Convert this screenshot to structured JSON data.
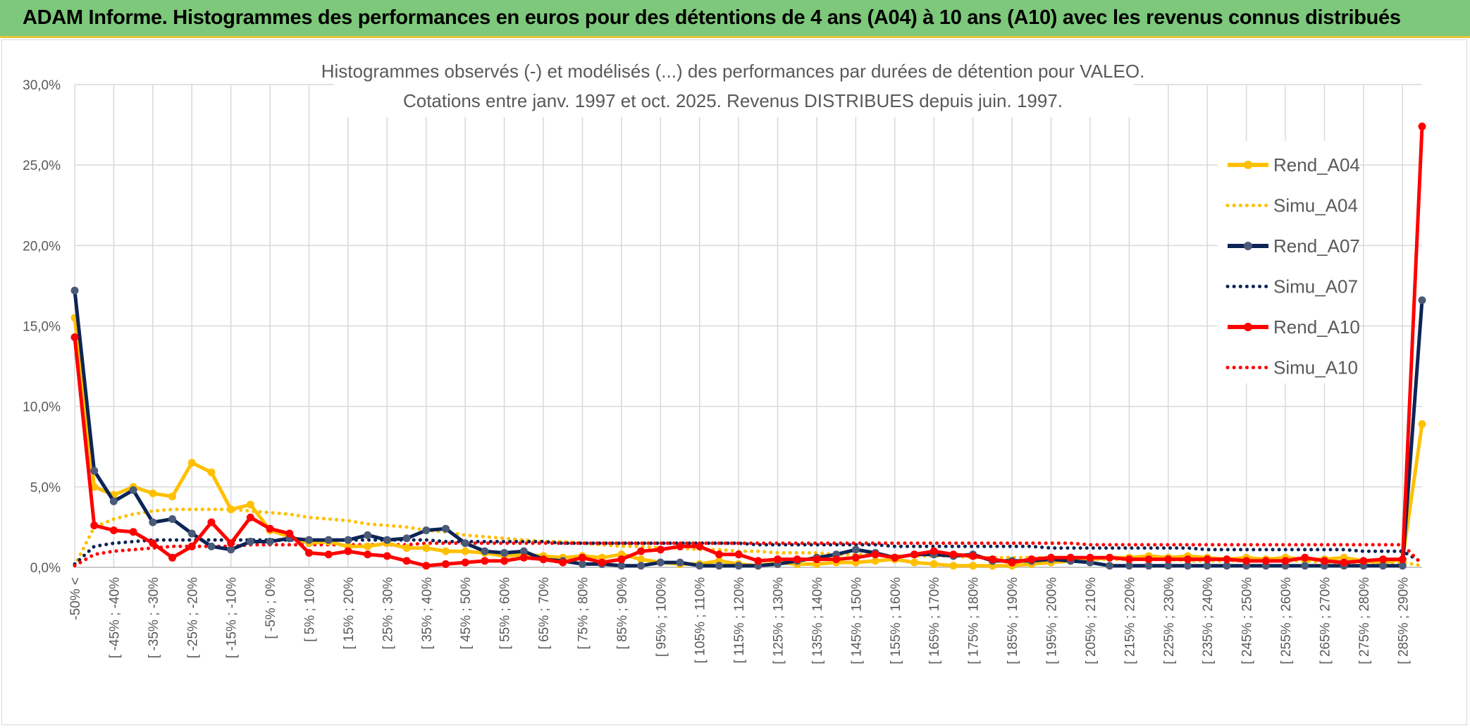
{
  "banner": {
    "title": "ADAM Informe. Histogrammes des performances en euros pour des détentions de 4 ans (A04) à 10 ans (A10) avec les revenus connus distribués"
  },
  "chart_data": {
    "type": "line",
    "title": "Histogrammes observés (-) et modélisés (...) des performances par durées de détention pour VALEO.",
    "subtitle": "Cotations entre janv. 1997 et oct. 2025. Revenus DISTRIBUES depuis juin. 1997.",
    "xlabel": "",
    "ylabel": "",
    "ylim": [
      0,
      30
    ],
    "y_ticks": [
      "0,0%",
      "5,0%",
      "10,0%",
      "15,0%",
      "20,0%",
      "25,0%",
      "30,0%"
    ],
    "grid": true,
    "legend_position": "right",
    "x_tick_labels": [
      "-50% <",
      "[ -45% ; -40%",
      "[ -35% ; -30%",
      "[ -25% ; -20%",
      "[ -15% ; -10%",
      "[ -5% ; 0%",
      "[ 5% ; 10%",
      "[ 15% ; 20%",
      "[ 25% ; 30%",
      "[ 35% ; 40%",
      "[ 45% ; 50%",
      "[ 55% ; 60%",
      "[ 65% ; 70%",
      "[ 75% ; 80%",
      "[ 85% ; 90%",
      "[ 95% ; 100%",
      "[ 105% ; 110%",
      "[ 115% ; 120%",
      "[ 125% ; 130%",
      "[ 135% ; 140%",
      "[ 145% ; 150%",
      "[ 155% ; 160%",
      "[ 165% ; 170%",
      "[ 175% ; 180%",
      "[ 185% ; 190%",
      "[ 195% ; 200%",
      "[ 205% ; 210%",
      "[ 215% ; 220%",
      "[ 225% ; 230%",
      "[ 235% ; 240%",
      "[ 245% ; 250%",
      "[ 255% ; 260%",
      "[ 265% ; 270%",
      "[ 275% ; 280%",
      "[ 285% ; 290%"
    ],
    "series": [
      {
        "name": "Rend_A04",
        "style": "solid",
        "color": "#ffc000",
        "markers": true,
        "values": [
          15.5,
          5.0,
          4.5,
          5.0,
          4.6,
          4.4,
          6.5,
          5.9,
          3.6,
          3.9,
          2.3,
          1.9,
          1.5,
          1.6,
          1.3,
          1.3,
          1.5,
          1.2,
          1.2,
          1.0,
          1.0,
          0.9,
          0.7,
          0.8,
          0.7,
          0.6,
          0.7,
          0.6,
          0.8,
          0.5,
          0.3,
          0.2,
          0.2,
          0.4,
          0.2,
          0.1,
          0.3,
          0.2,
          0.2,
          0.3,
          0.3,
          0.4,
          0.5,
          0.3,
          0.2,
          0.1,
          0.1,
          0.1,
          0.1,
          0.2,
          0.3,
          0.4,
          0.5,
          0.6,
          0.6,
          0.7,
          0.6,
          0.7,
          0.6,
          0.5,
          0.6,
          0.5,
          0.6,
          0.5,
          0.5,
          0.6,
          0.4,
          0.3,
          0.5,
          8.9
        ]
      },
      {
        "name": "Simu_A04",
        "style": "dotted",
        "color": "#ffc000",
        "markers": false,
        "values": [
          0.1,
          2.5,
          3.0,
          3.3,
          3.5,
          3.6,
          3.6,
          3.6,
          3.6,
          3.5,
          3.4,
          3.3,
          3.1,
          3.0,
          2.9,
          2.7,
          2.6,
          2.5,
          2.3,
          2.2,
          2.0,
          1.9,
          1.8,
          1.7,
          1.6,
          1.6,
          1.5,
          1.4,
          1.3,
          1.3,
          1.2,
          1.2,
          1.1,
          1.1,
          1.0,
          1.0,
          0.9,
          0.9,
          0.9,
          0.8,
          0.8,
          0.8,
          0.7,
          0.7,
          0.7,
          0.7,
          0.6,
          0.6,
          0.6,
          0.6,
          0.6,
          0.5,
          0.5,
          0.5,
          0.5,
          0.5,
          0.5,
          0.4,
          0.4,
          0.4,
          0.4,
          0.4,
          0.4,
          0.4,
          0.3,
          0.3,
          0.3,
          0.3,
          0.3,
          0.1
        ]
      },
      {
        "name": "Rend_A07",
        "style": "solid",
        "color": "#0d2456",
        "markers": true,
        "values": [
          17.2,
          6.0,
          4.1,
          4.8,
          2.8,
          3.0,
          2.1,
          1.3,
          1.1,
          1.6,
          1.6,
          1.8,
          1.7,
          1.7,
          1.7,
          2.0,
          1.7,
          1.8,
          2.3,
          2.4,
          1.5,
          1.0,
          0.9,
          1.0,
          0.5,
          0.4,
          0.2,
          0.2,
          0.1,
          0.1,
          0.3,
          0.3,
          0.1,
          0.1,
          0.1,
          0.1,
          0.2,
          0.4,
          0.6,
          0.8,
          1.1,
          0.9,
          0.6,
          0.8,
          0.8,
          0.7,
          0.8,
          0.4,
          0.4,
          0.4,
          0.5,
          0.4,
          0.3,
          0.1,
          0.1,
          0.1,
          0.1,
          0.1,
          0.1,
          0.1,
          0.1,
          0.1,
          0.1,
          0.1,
          0.1,
          0.1,
          0.1,
          0.1,
          0.1,
          16.6
        ]
      },
      {
        "name": "Simu_A07",
        "style": "dotted",
        "color": "#0d2456",
        "markers": false,
        "values": [
          0.2,
          1.3,
          1.5,
          1.6,
          1.7,
          1.7,
          1.7,
          1.7,
          1.7,
          1.7,
          1.7,
          1.7,
          1.7,
          1.7,
          1.7,
          1.7,
          1.7,
          1.7,
          1.7,
          1.6,
          1.6,
          1.6,
          1.6,
          1.6,
          1.6,
          1.5,
          1.5,
          1.5,
          1.5,
          1.5,
          1.5,
          1.5,
          1.5,
          1.5,
          1.5,
          1.4,
          1.4,
          1.4,
          1.4,
          1.4,
          1.4,
          1.4,
          1.3,
          1.3,
          1.3,
          1.3,
          1.3,
          1.3,
          1.3,
          1.3,
          1.2,
          1.2,
          1.2,
          1.2,
          1.2,
          1.2,
          1.2,
          1.2,
          1.1,
          1.1,
          1.1,
          1.1,
          1.1,
          1.1,
          1.1,
          1.1,
          1.0,
          1.0,
          1.0,
          0.3
        ]
      },
      {
        "name": "Rend_A10",
        "style": "solid",
        "color": "#ff0000",
        "markers": true,
        "values": [
          14.3,
          2.6,
          2.3,
          2.2,
          1.5,
          0.6,
          1.3,
          2.8,
          1.5,
          3.1,
          2.4,
          2.1,
          0.9,
          0.8,
          1.0,
          0.8,
          0.7,
          0.4,
          0.1,
          0.2,
          0.3,
          0.4,
          0.4,
          0.6,
          0.5,
          0.3,
          0.6,
          0.3,
          0.5,
          1.0,
          1.1,
          1.3,
          1.3,
          0.8,
          0.8,
          0.4,
          0.5,
          0.5,
          0.5,
          0.5,
          0.6,
          0.8,
          0.6,
          0.8,
          1.0,
          0.8,
          0.7,
          0.5,
          0.3,
          0.5,
          0.6,
          0.6,
          0.6,
          0.6,
          0.5,
          0.5,
          0.5,
          0.5,
          0.5,
          0.5,
          0.4,
          0.4,
          0.4,
          0.6,
          0.4,
          0.3,
          0.4,
          0.5,
          0.5,
          27.4
        ]
      },
      {
        "name": "Simu_A10",
        "style": "dotted",
        "color": "#ff0000",
        "markers": false,
        "values": [
          0.1,
          0.8,
          1.0,
          1.1,
          1.2,
          1.3,
          1.3,
          1.3,
          1.3,
          1.4,
          1.4,
          1.4,
          1.4,
          1.4,
          1.4,
          1.4,
          1.4,
          1.4,
          1.5,
          1.5,
          1.5,
          1.5,
          1.5,
          1.5,
          1.5,
          1.5,
          1.5,
          1.5,
          1.5,
          1.5,
          1.5,
          1.5,
          1.5,
          1.5,
          1.5,
          1.5,
          1.5,
          1.5,
          1.5,
          1.5,
          1.5,
          1.5,
          1.5,
          1.5,
          1.5,
          1.5,
          1.5,
          1.5,
          1.5,
          1.5,
          1.5,
          1.5,
          1.4,
          1.4,
          1.4,
          1.4,
          1.4,
          1.4,
          1.4,
          1.4,
          1.4,
          1.4,
          1.4,
          1.4,
          1.4,
          1.4,
          1.4,
          1.4,
          1.4,
          0.2
        ]
      }
    ]
  }
}
